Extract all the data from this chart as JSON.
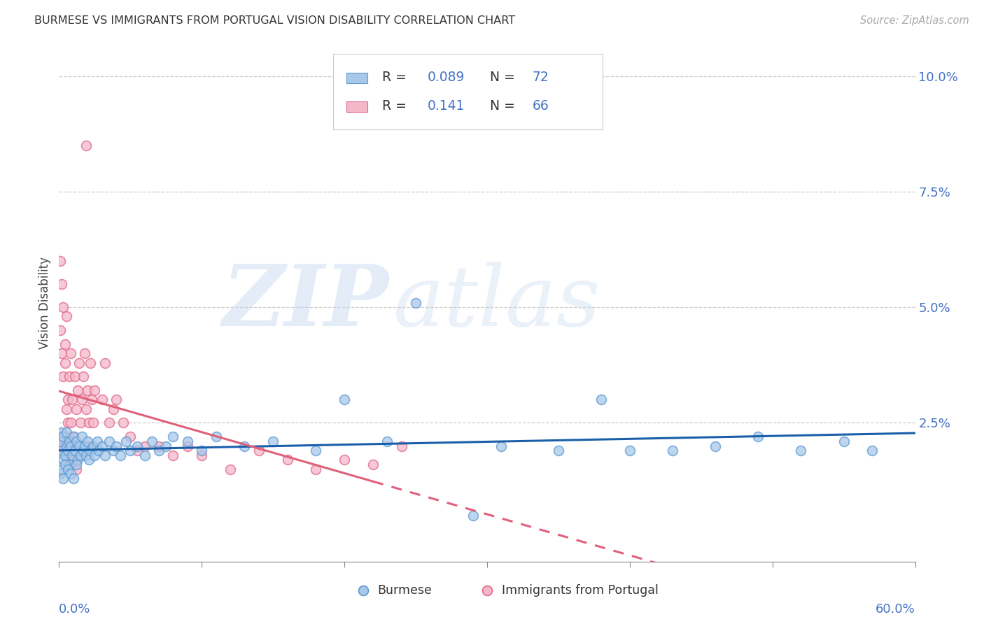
{
  "title": "BURMESE VS IMMIGRANTS FROM PORTUGAL VISION DISABILITY CORRELATION CHART",
  "source": "Source: ZipAtlas.com",
  "ylabel": "Vision Disability",
  "x_min": 0.0,
  "x_max": 0.6,
  "y_min": -0.005,
  "y_max": 0.107,
  "burmese_color": "#a8c8e8",
  "burmese_edge_color": "#5b9bd5",
  "portugal_color": "#f5b8cb",
  "portugal_edge_color": "#e06888",
  "trend_burmese_color": "#1a5fa8",
  "trend_portugal_color": "#e0607a",
  "watermark_zip": "ZIP",
  "watermark_atlas": "atlas",
  "legend_R1": "0.089",
  "legend_N1": "72",
  "legend_R2": "0.141",
  "legend_N2": "66",
  "blue_text_color": "#4472c4",
  "title_color": "#333333",
  "source_color": "#aaaaaa",
  "axis_label_color": "#4472c4",
  "y_ticks": [
    0.0,
    0.025,
    0.05,
    0.075,
    0.1
  ],
  "y_tick_labels": [
    "",
    "2.5%",
    "5.0%",
    "7.5%",
    "10.0%"
  ],
  "x_ticks": [
    0.0,
    0.1,
    0.2,
    0.3,
    0.4,
    0.5,
    0.6
  ],
  "marker_size": 100,
  "marker_alpha": 0.75,
  "marker_linewidth": 1.2
}
